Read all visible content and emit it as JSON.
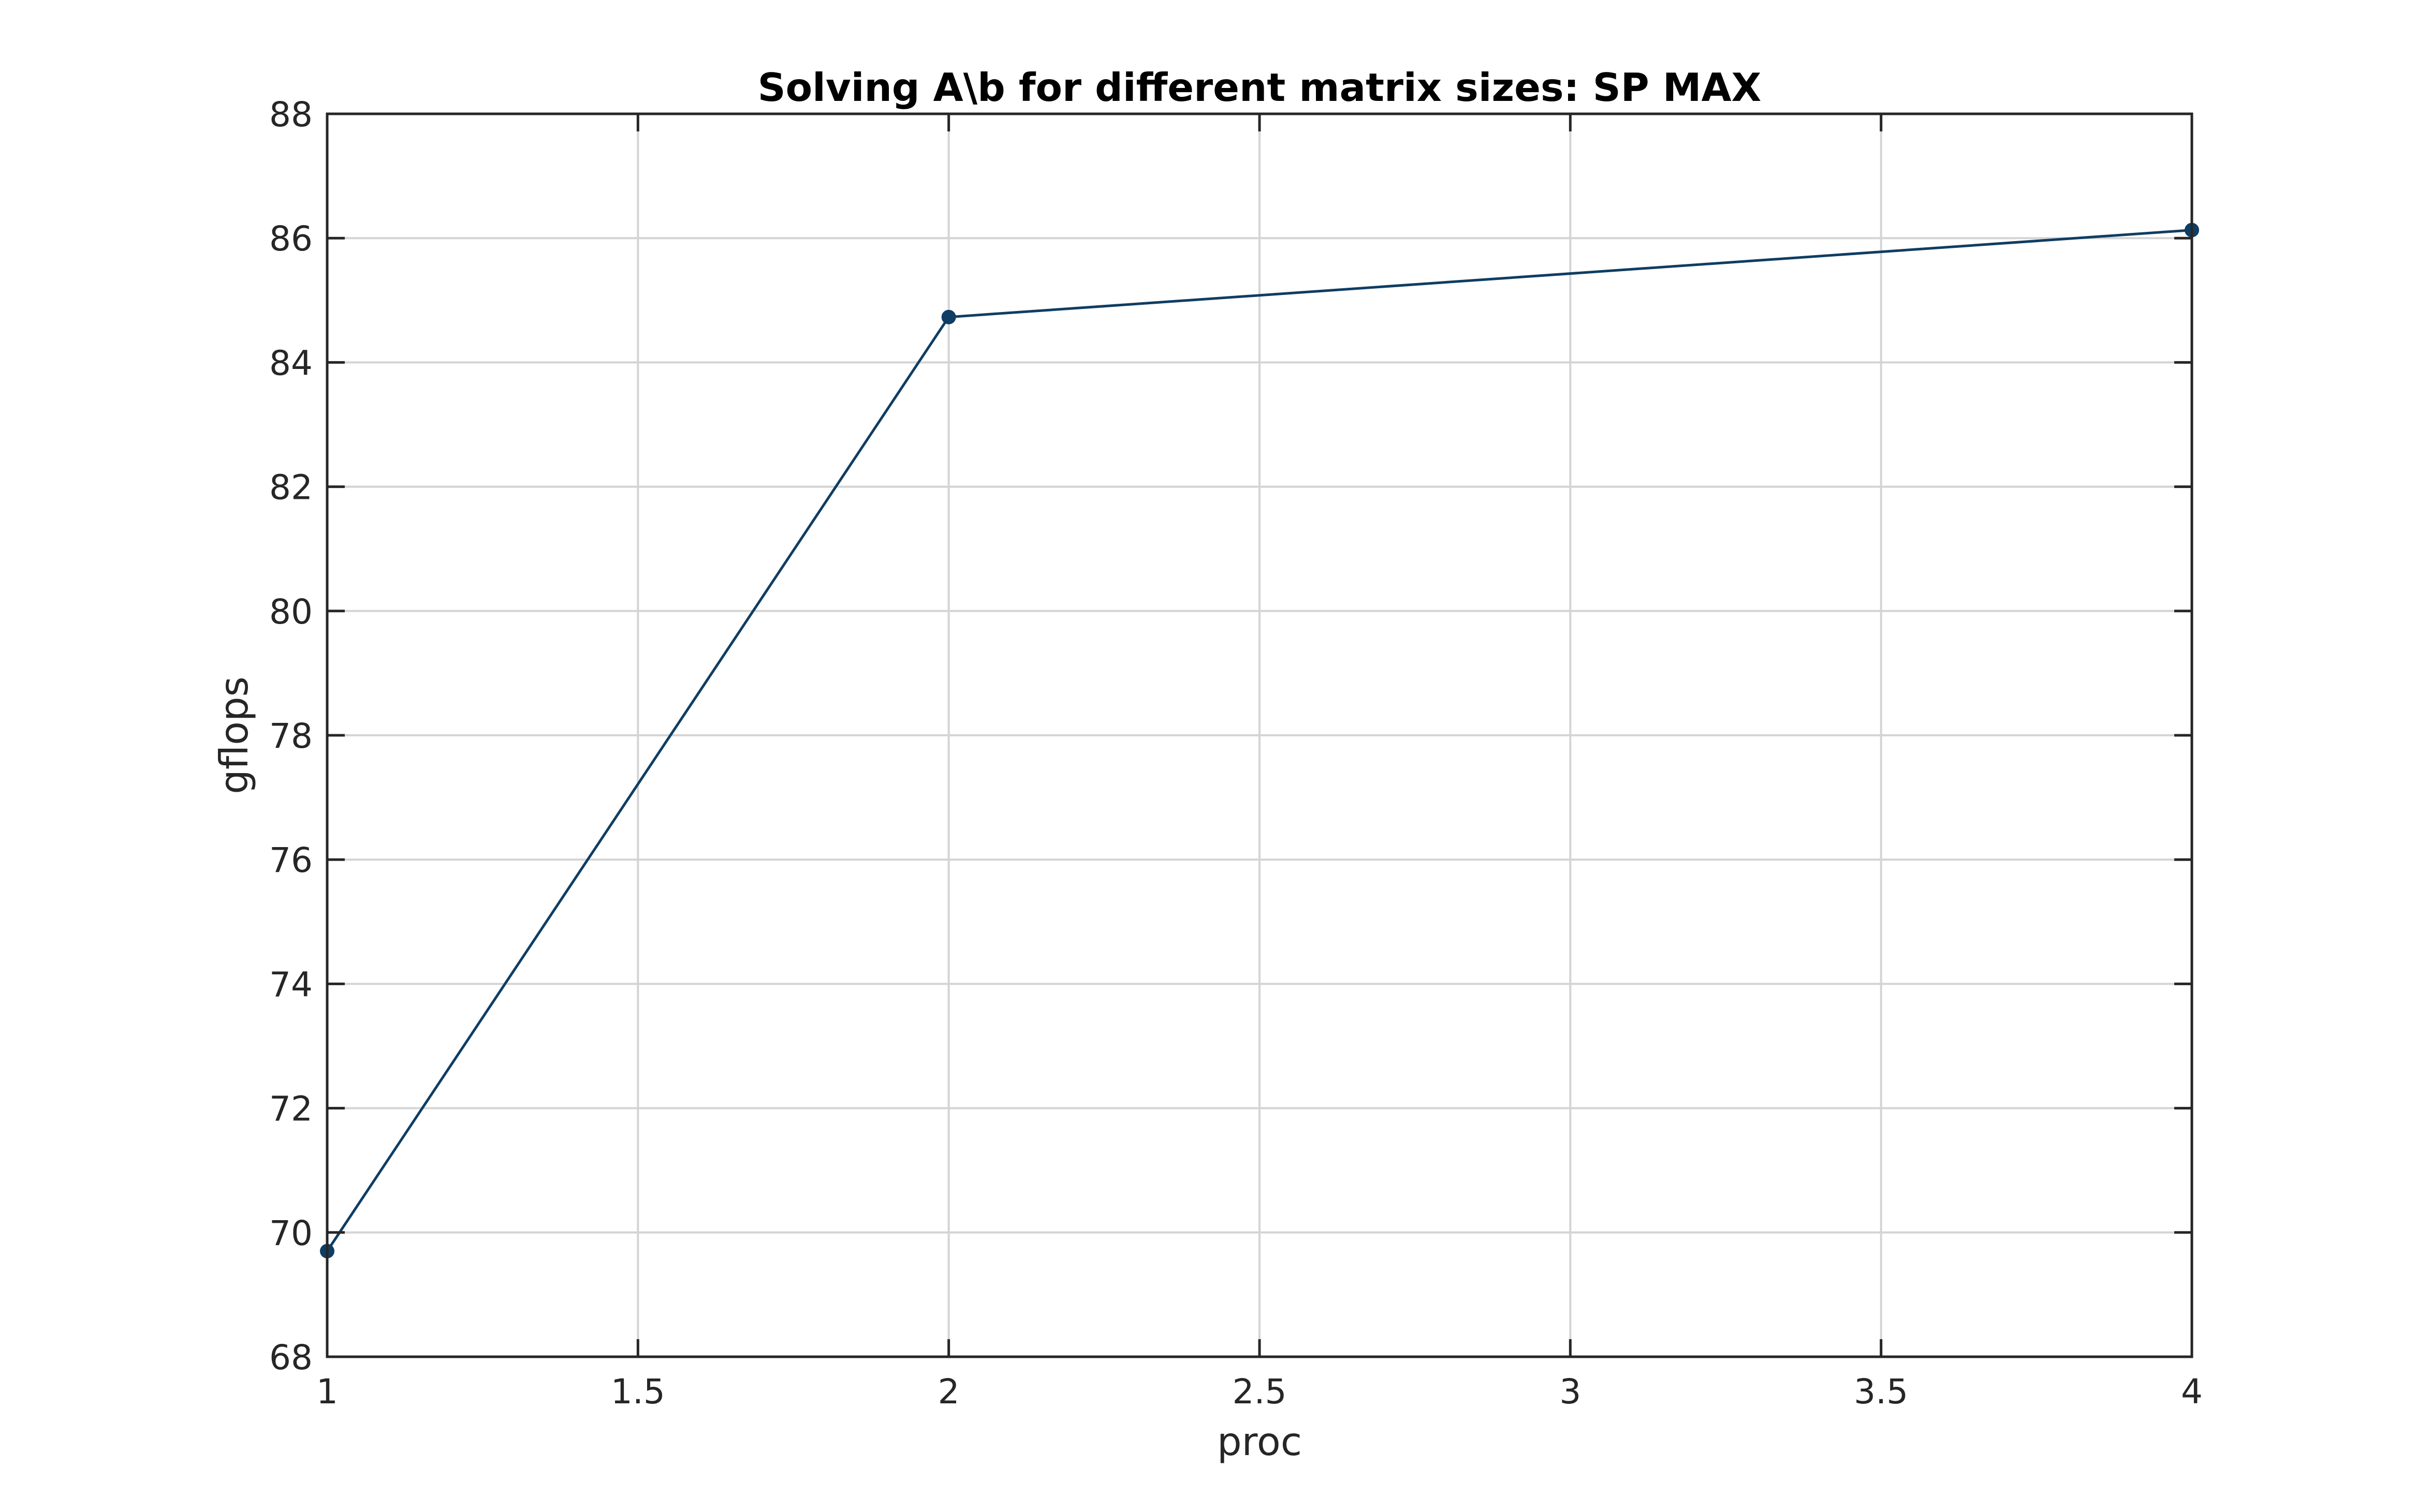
{
  "chart_data": {
    "type": "line",
    "title": "Solving A\\b for different matrix sizes: SP MAX",
    "xlabel": "proc",
    "ylabel": "gflops",
    "xlim": [
      1,
      4
    ],
    "ylim": [
      68,
      88
    ],
    "xticks": [
      1,
      1.5,
      2,
      2.5,
      3,
      3.5,
      4
    ],
    "xtick_labels": [
      "1",
      "1.5",
      "2",
      "2.5",
      "3",
      "3.5",
      "4"
    ],
    "yticks": [
      68,
      70,
      72,
      74,
      76,
      78,
      80,
      82,
      84,
      86,
      88
    ],
    "ytick_labels": [
      "68",
      "70",
      "72",
      "74",
      "76",
      "78",
      "80",
      "82",
      "84",
      "86",
      "88"
    ],
    "grid": true,
    "legend": false,
    "series": [
      {
        "x": [
          1,
          2,
          4
        ],
        "values": [
          69.7,
          84.73,
          86.13
        ],
        "color": "#0f3d63",
        "marker": "circle"
      }
    ]
  }
}
